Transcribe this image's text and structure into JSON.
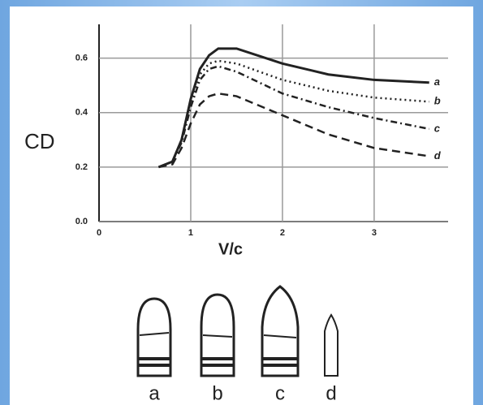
{
  "chart_data": {
    "type": "line",
    "xlabel": "V/c",
    "ylabel": "CD",
    "x": [
      0.65,
      0.8,
      0.9,
      1.0,
      1.1,
      1.2,
      1.3,
      1.5,
      2.0,
      2.5,
      3.0,
      3.6
    ],
    "series": [
      {
        "name": "a",
        "color": "#222222",
        "style": "solid",
        "values": [
          0.2,
          0.22,
          0.3,
          0.45,
          0.56,
          0.61,
          0.635,
          0.635,
          0.58,
          0.54,
          0.52,
          0.51
        ]
      },
      {
        "name": "b",
        "color": "#222222",
        "style": "dotted",
        "values": [
          0.2,
          0.22,
          0.3,
          0.44,
          0.54,
          0.58,
          0.59,
          0.58,
          0.52,
          0.48,
          0.455,
          0.44
        ]
      },
      {
        "name": "c",
        "color": "#222222",
        "style": "dashdot",
        "values": [
          0.2,
          0.22,
          0.29,
          0.42,
          0.52,
          0.56,
          0.57,
          0.55,
          0.47,
          0.42,
          0.38,
          0.34
        ]
      },
      {
        "name": "d",
        "color": "#222222",
        "style": "dashed",
        "values": [
          0.2,
          0.21,
          0.27,
          0.36,
          0.43,
          0.46,
          0.47,
          0.46,
          0.39,
          0.32,
          0.27,
          0.24
        ]
      }
    ],
    "xlim": [
      0,
      3.7
    ],
    "xticks": [
      0,
      1,
      2,
      3
    ],
    "ylim": [
      0,
      0.7
    ],
    "yticks": [
      {
        "value": 0,
        "label": "0.0"
      },
      0.2,
      0.4,
      0.6
    ],
    "grid": true
  }
}
